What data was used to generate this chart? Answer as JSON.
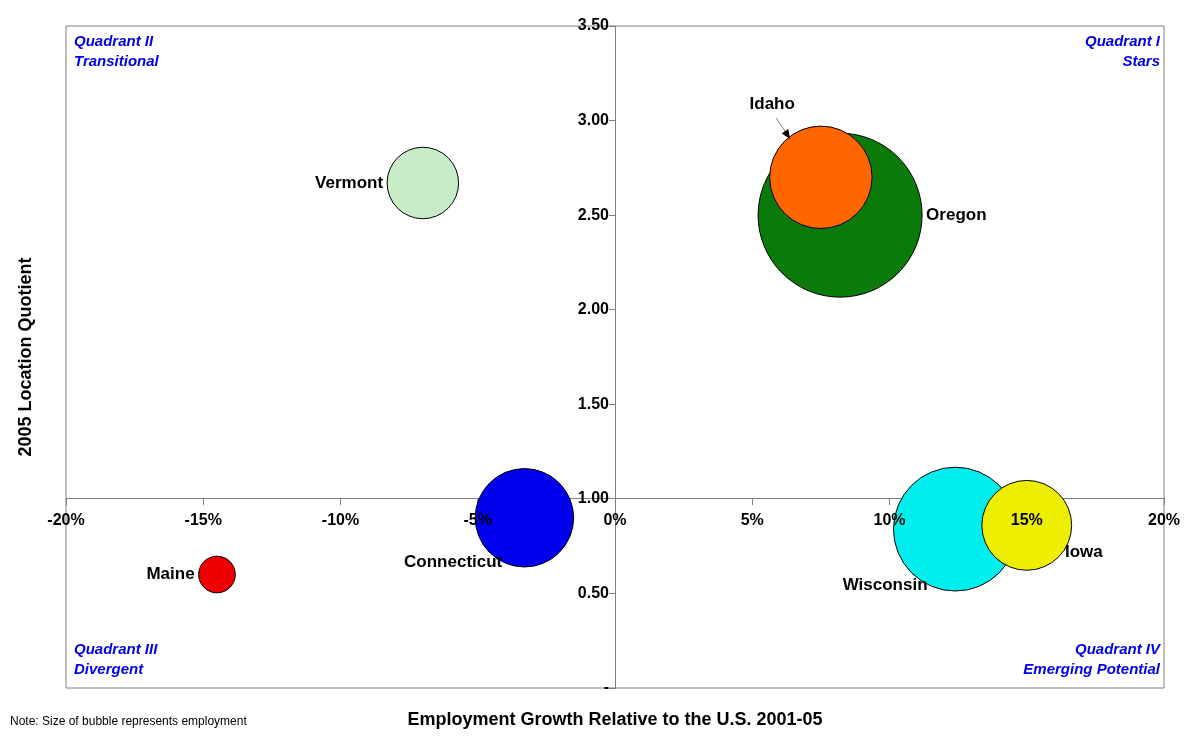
{
  "chart_data": {
    "type": "bubble",
    "xlabel": "Employment Growth Relative to the U.S. 2001-05",
    "ylabel": "2005 Location Quotient",
    "xlim": [
      -20,
      20
    ],
    "xticks": [
      {
        "value": -20,
        "label": "-20%"
      },
      {
        "value": -15,
        "label": "-15%"
      },
      {
        "value": -10,
        "label": "-10%"
      },
      {
        "value": -5,
        "label": "-5%"
      },
      {
        "value": 0,
        "label": "0%"
      },
      {
        "value": 5,
        "label": "5%"
      },
      {
        "value": 10,
        "label": "10%"
      },
      {
        "value": 15,
        "label": "15%"
      },
      {
        "value": 20,
        "label": "20%"
      }
    ],
    "ylim": [
      0,
      3.5
    ],
    "yticks": [
      {
        "value": 0,
        "label": "-"
      },
      {
        "value": 0.5,
        "label": "0.50"
      },
      {
        "value": 1,
        "label": "1.00"
      },
      {
        "value": 1.5,
        "label": "1.50"
      },
      {
        "value": 2,
        "label": "2.00"
      },
      {
        "value": 2.5,
        "label": "2.50"
      },
      {
        "value": 3,
        "label": "3.00"
      },
      {
        "value": 3.5,
        "label": "3.50"
      }
    ],
    "grid": false,
    "legend": false,
    "marker": "circle",
    "series": [
      {
        "name": "Vermont",
        "color": "#c8ecc8",
        "x": [
          -7.0
        ],
        "values": [
          2.67
        ],
        "sizes": [
          0.19
        ]
      },
      {
        "name": "Maine",
        "color": "#ee0000",
        "x": [
          -14.5
        ],
        "values": [
          0.6
        ],
        "sizes": [
          0.05
        ]
      },
      {
        "name": "Connecticut",
        "color": "#0000ee",
        "x": [
          -3.3
        ],
        "values": [
          0.9
        ],
        "sizes": [
          0.36
        ]
      },
      {
        "name": "Oregon",
        "color": "#0a7a0a",
        "x": [
          8.2
        ],
        "values": [
          2.5
        ],
        "sizes": [
          1
        ]
      },
      {
        "name": "Idaho",
        "color": "#ff6600",
        "x": [
          7.5
        ],
        "values": [
          2.7
        ],
        "sizes": [
          0.39
        ]
      },
      {
        "name": "Wisconsin",
        "color": "#00eeee",
        "x": [
          12.4
        ],
        "values": [
          0.84
        ],
        "sizes": [
          0.57
        ]
      },
      {
        "name": "Iowa",
        "color": "#eeee00",
        "x": [
          15.0
        ],
        "values": [
          0.86
        ],
        "sizes": [
          0.3
        ]
      }
    ],
    "annotations": [
      "Quadrant II\nTransitional",
      "Quadrant I\nStars",
      "Quadrant III\nDivergent",
      "Quadrant IV\nEmerging Potential",
      "Note: Size of bubble represents employment"
    ]
  }
}
